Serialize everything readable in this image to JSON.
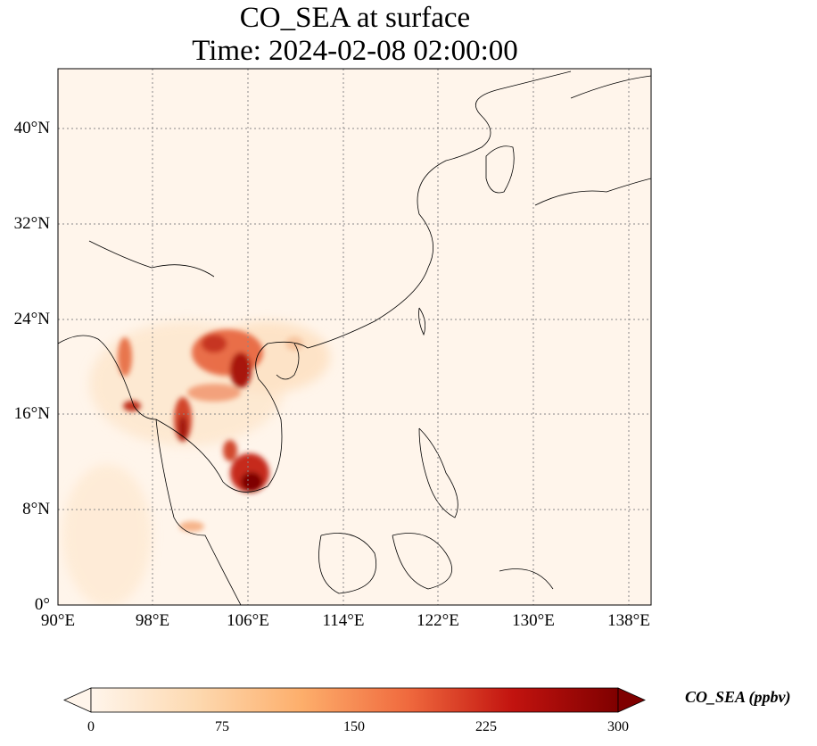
{
  "title": {
    "line1": "CO_SEA at surface",
    "line2": "Time: 2024-02-08 02:00:00"
  },
  "axes": {
    "lat_ticks": [
      "40°N",
      "32°N",
      "24°N",
      "16°N",
      "8°N",
      "0°"
    ],
    "lon_ticks": [
      "90°E",
      "98°E",
      "106°E",
      "114°E",
      "122°E",
      "130°E",
      "138°E"
    ]
  },
  "colorbar": {
    "label": "CO_SEA (ppbv)",
    "ticks": [
      "0",
      "75",
      "150",
      "225",
      "300"
    ],
    "colormap": [
      "#fff5eb",
      "#fdd0a2",
      "#fd8d3c",
      "#d94801",
      "#a50f15",
      "#67000d"
    ]
  },
  "chart_data": {
    "type": "heatmap",
    "variable": "CO_SEA",
    "units": "ppbv",
    "level": "surface",
    "time": "2024-02-08 02:00:00",
    "lon_range": [
      90,
      140
    ],
    "lat_range": [
      0,
      45
    ],
    "vmin": 0,
    "vmax": 300,
    "grid": true
  }
}
